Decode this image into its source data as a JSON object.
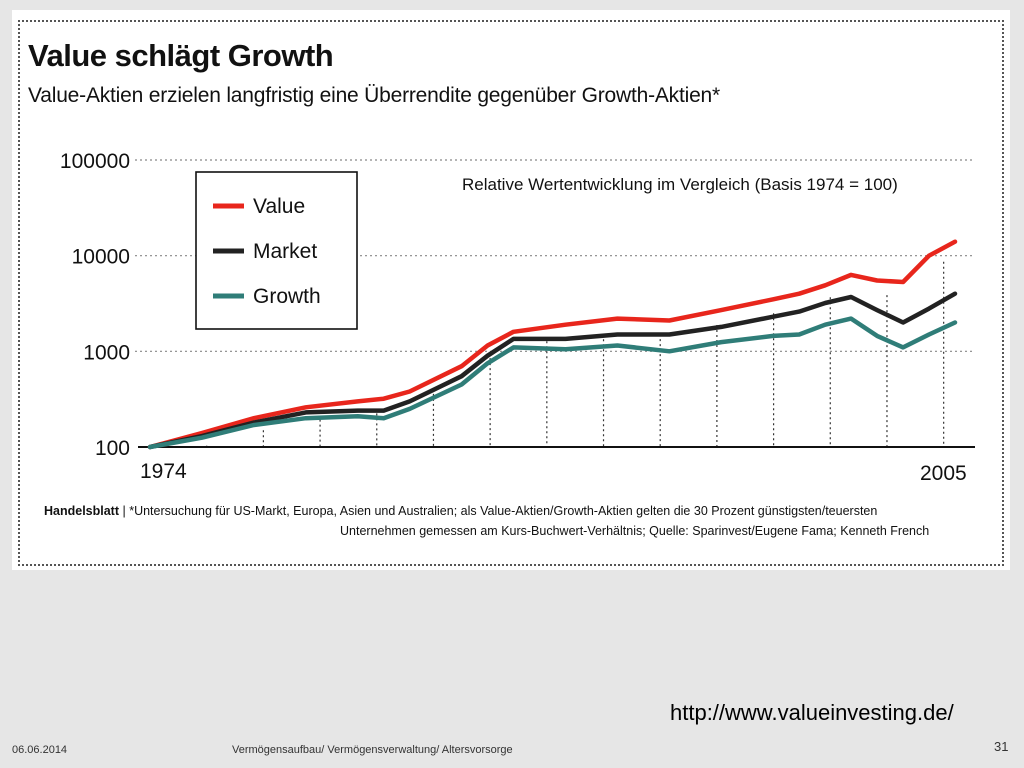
{
  "slide": {
    "url": "http://www.valueinvesting.de/",
    "date": "06.06.2014",
    "center": "Vermögensaufbau/ Vermögensverwaltung/ Altersvorsorge",
    "page": "31"
  },
  "figure": {
    "title": "Value schlägt Growth",
    "subtitle": "Value-Aktien erzielen langfristig eine Überrendite gegenüber Growth-Aktien*",
    "note": "Relative Wertentwicklung im Vergleich (Basis 1974 = 100)",
    "footnote_brand": "Handelsblatt",
    "footnote_line1": "*Untersuchung für US-Markt, Europa, Asien und Australien;  als Value-Aktien/Growth-Aktien gelten die 30 Prozent günstigsten/teuersten",
    "footnote_line2": "Unternehmen gemessen am Kurs-Buchwert-Verhältnis; Quelle: Sparinvest/Eugene Fama; Kenneth French"
  },
  "chart_data": {
    "type": "line",
    "scale": "log",
    "ylim": [
      100,
      100000
    ],
    "yticks": [
      100,
      1000,
      10000,
      100000
    ],
    "ytick_labels": [
      "100",
      "1000",
      "10000",
      "100000"
    ],
    "xlim": [
      1974,
      2005
    ],
    "xtick_labels": [
      "1974",
      "2005"
    ],
    "grid": "horizontal dotted",
    "legend_placement": "top-left",
    "x": [
      1974,
      1976,
      1978,
      1980,
      1982,
      1983,
      1984,
      1986,
      1987,
      1988,
      1990,
      1992,
      1994,
      1996,
      1998,
      1999,
      2000,
      2001,
      2002,
      2003,
      2004,
      2005
    ],
    "series": [
      {
        "name": "Value",
        "color": "#e8261c",
        "values": [
          100,
          140,
          200,
          260,
          300,
          320,
          380,
          700,
          1150,
          1600,
          1900,
          2200,
          2100,
          2700,
          3500,
          4000,
          4900,
          6300,
          5500,
          5300,
          10000,
          14000
        ]
      },
      {
        "name": "Market",
        "color": "#222222",
        "values": [
          100,
          130,
          180,
          230,
          240,
          240,
          300,
          550,
          900,
          1350,
          1350,
          1500,
          1500,
          1800,
          2300,
          2600,
          3200,
          3700,
          2700,
          2000,
          2800,
          4000
        ]
      },
      {
        "name": "Growth",
        "color": "#2f7d78",
        "values": [
          100,
          125,
          170,
          200,
          210,
          200,
          250,
          450,
          750,
          1100,
          1050,
          1150,
          1000,
          1250,
          1450,
          1500,
          1900,
          2200,
          1450,
          1100,
          1500,
          2000
        ]
      }
    ]
  }
}
